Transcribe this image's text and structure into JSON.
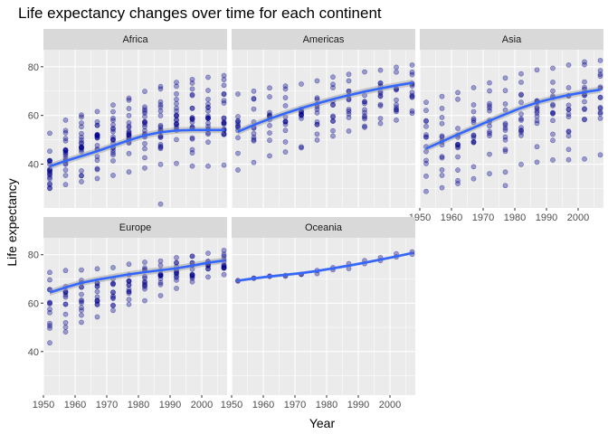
{
  "chart_data": {
    "type": "scatter",
    "title": "Life expectancy changes over time for each continent",
    "xlabel": "Year",
    "ylabel": "Life expectancy",
    "xlim": [
      1950,
      2008
    ],
    "ylim": [
      22,
      87
    ],
    "x_ticks": [
      1950,
      1960,
      1970,
      1980,
      1990,
      2000
    ],
    "y_ticks": [
      40,
      60,
      80
    ],
    "grid": true,
    "point_color": "#00008b",
    "smooth_color": "#3366ff",
    "years": [
      1952,
      1957,
      1962,
      1967,
      1972,
      1977,
      1982,
      1987,
      1992,
      1997,
      2002,
      2007
    ],
    "panels": [
      {
        "name": "Africa",
        "points": [
          {
            "year": 1952,
            "min": 30.0,
            "max": 52.7,
            "outliers": []
          },
          {
            "year": 1957,
            "min": 31.6,
            "max": 58.1,
            "outliers": []
          },
          {
            "year": 1962,
            "min": 32.8,
            "max": 60.2,
            "outliers": []
          },
          {
            "year": 1967,
            "min": 34.1,
            "max": 61.6,
            "outliers": []
          },
          {
            "year": 1972,
            "min": 35.4,
            "max": 64.3,
            "outliers": []
          },
          {
            "year": 1977,
            "min": 36.8,
            "max": 67.1,
            "outliers": []
          },
          {
            "year": 1982,
            "min": 38.4,
            "max": 69.9,
            "outliers": []
          },
          {
            "year": 1987,
            "min": 39.9,
            "max": 71.9,
            "outliers": [
              23.6
            ]
          },
          {
            "year": 1992,
            "min": 40.3,
            "max": 73.6,
            "outliers": []
          },
          {
            "year": 1997,
            "min": 39.2,
            "max": 74.8,
            "outliers": []
          },
          {
            "year": 2002,
            "min": 39.2,
            "max": 75.7,
            "outliers": []
          },
          {
            "year": 2007,
            "min": 39.6,
            "max": 76.4,
            "outliers": []
          }
        ],
        "smooth": [
          39.1,
          41.3,
          43.3,
          45.3,
          47.6,
          49.8,
          51.8,
          53.1,
          53.8,
          54.0,
          54.0,
          54.0
        ]
      },
      {
        "name": "Americas",
        "points": [
          {
            "year": 1952,
            "min": 37.6,
            "max": 68.8,
            "outliers": []
          },
          {
            "year": 1957,
            "min": 40.7,
            "max": 70.0,
            "outliers": []
          },
          {
            "year": 1962,
            "min": 43.4,
            "max": 71.3,
            "outliers": []
          },
          {
            "year": 1967,
            "min": 45.0,
            "max": 72.1,
            "outliers": []
          },
          {
            "year": 1972,
            "min": 46.7,
            "max": 72.9,
            "outliers": []
          },
          {
            "year": 1977,
            "min": 49.9,
            "max": 74.2,
            "outliers": []
          },
          {
            "year": 1982,
            "min": 51.5,
            "max": 75.8,
            "outliers": []
          },
          {
            "year": 1987,
            "min": 53.6,
            "max": 76.9,
            "outliers": []
          },
          {
            "year": 1992,
            "min": 55.1,
            "max": 77.9,
            "outliers": []
          },
          {
            "year": 1997,
            "min": 56.7,
            "max": 78.6,
            "outliers": []
          },
          {
            "year": 2002,
            "min": 58.1,
            "max": 79.8,
            "outliers": []
          },
          {
            "year": 2007,
            "min": 60.9,
            "max": 80.7,
            "outliers": []
          }
        ],
        "smooth": [
          53.3,
          56.1,
          58.6,
          60.9,
          63.0,
          64.9,
          66.7,
          68.3,
          69.8,
          71.1,
          72.3,
          73.4
        ]
      },
      {
        "name": "Asia",
        "points": [
          {
            "year": 1952,
            "min": 28.8,
            "max": 65.4,
            "outliers": []
          },
          {
            "year": 1957,
            "min": 30.3,
            "max": 67.8,
            "outliers": []
          },
          {
            "year": 1962,
            "min": 32.0,
            "max": 69.4,
            "outliers": []
          },
          {
            "year": 1967,
            "min": 34.0,
            "max": 71.4,
            "outliers": []
          },
          {
            "year": 1972,
            "min": 36.1,
            "max": 73.4,
            "outliers": []
          },
          {
            "year": 1977,
            "min": 31.2,
            "max": 75.4,
            "outliers": []
          },
          {
            "year": 1982,
            "min": 39.9,
            "max": 77.1,
            "outliers": []
          },
          {
            "year": 1987,
            "min": 40.8,
            "max": 78.7,
            "outliers": []
          },
          {
            "year": 1992,
            "min": 41.7,
            "max": 79.4,
            "outliers": []
          },
          {
            "year": 1997,
            "min": 41.8,
            "max": 80.7,
            "outliers": []
          },
          {
            "year": 2002,
            "min": 42.1,
            "max": 82.0,
            "outliers": []
          },
          {
            "year": 2007,
            "min": 43.8,
            "max": 82.6,
            "outliers": []
          }
        ],
        "smooth": [
          46.4,
          49.3,
          52.2,
          55.0,
          57.8,
          60.5,
          63.1,
          65.3,
          67.0,
          68.4,
          69.6,
          70.6
        ]
      },
      {
        "name": "Europe",
        "points": [
          {
            "year": 1952,
            "min": 43.6,
            "max": 72.7,
            "outliers": []
          },
          {
            "year": 1957,
            "min": 48.1,
            "max": 73.5,
            "outliers": []
          },
          {
            "year": 1962,
            "min": 52.1,
            "max": 73.7,
            "outliers": []
          },
          {
            "year": 1967,
            "min": 54.3,
            "max": 74.2,
            "outliers": []
          },
          {
            "year": 1972,
            "min": 57.0,
            "max": 74.7,
            "outliers": []
          },
          {
            "year": 1977,
            "min": 59.5,
            "max": 76.1,
            "outliers": []
          },
          {
            "year": 1982,
            "min": 61.0,
            "max": 76.9,
            "outliers": []
          },
          {
            "year": 1987,
            "min": 63.1,
            "max": 77.4,
            "outliers": []
          },
          {
            "year": 1992,
            "min": 66.1,
            "max": 78.8,
            "outliers": []
          },
          {
            "year": 1997,
            "min": 68.8,
            "max": 79.4,
            "outliers": []
          },
          {
            "year": 2002,
            "min": 70.8,
            "max": 80.6,
            "outliers": []
          },
          {
            "year": 2007,
            "min": 71.8,
            "max": 81.8,
            "outliers": []
          }
        ],
        "smooth": [
          64.4,
          66.5,
          68.4,
          69.7,
          70.8,
          71.9,
          72.8,
          73.6,
          74.4,
          75.5,
          76.7,
          77.6
        ]
      },
      {
        "name": "Oceania",
        "points": [
          {
            "year": 1952,
            "min": 69.1,
            "max": 69.4,
            "outliers": []
          },
          {
            "year": 1957,
            "min": 70.3,
            "max": 70.3,
            "outliers": []
          },
          {
            "year": 1962,
            "min": 71.0,
            "max": 71.2,
            "outliers": []
          },
          {
            "year": 1967,
            "min": 71.1,
            "max": 71.5,
            "outliers": []
          },
          {
            "year": 1972,
            "min": 71.9,
            "max": 71.9,
            "outliers": []
          },
          {
            "year": 1977,
            "min": 72.2,
            "max": 73.5,
            "outliers": []
          },
          {
            "year": 1982,
            "min": 73.8,
            "max": 74.7,
            "outliers": []
          },
          {
            "year": 1987,
            "min": 74.3,
            "max": 76.3,
            "outliers": []
          },
          {
            "year": 1992,
            "min": 76.3,
            "max": 77.6,
            "outliers": []
          },
          {
            "year": 1997,
            "min": 77.6,
            "max": 78.8,
            "outliers": []
          },
          {
            "year": 2002,
            "min": 79.1,
            "max": 80.4,
            "outliers": []
          },
          {
            "year": 2007,
            "min": 80.2,
            "max": 81.2,
            "outliers": []
          }
        ],
        "smooth": [
          69.3,
          70.2,
          71.0,
          71.7,
          72.4,
          73.3,
          74.4,
          75.5,
          76.7,
          78.0,
          79.3,
          80.7
        ]
      }
    ]
  }
}
